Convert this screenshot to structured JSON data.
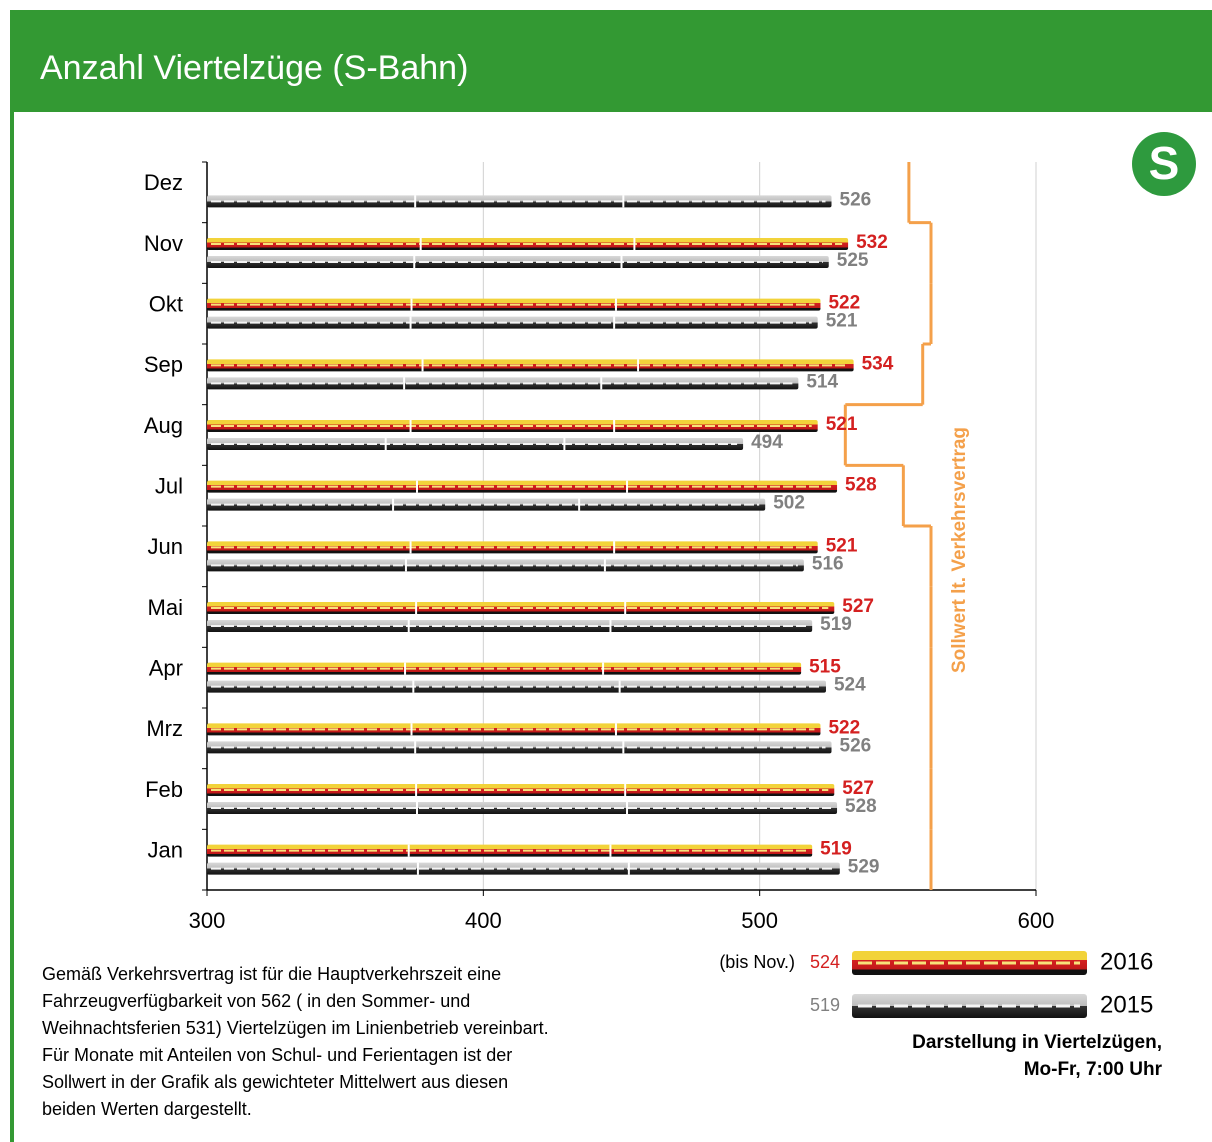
{
  "chart_data": {
    "type": "bar",
    "title": "Anzahl Viertelzüge (S-Bahn)",
    "logo": "S",
    "categories": [
      "Jan",
      "Feb",
      "Mrz",
      "Apr",
      "Mai",
      "Jun",
      "Jul",
      "Aug",
      "Sep",
      "Okt",
      "Nov",
      "Dez"
    ],
    "series": [
      {
        "name": "2016",
        "color": "#d42020",
        "average": 524,
        "average_note": "(bis Nov.)",
        "values": [
          519,
          527,
          522,
          515,
          527,
          521,
          528,
          521,
          534,
          522,
          532,
          null
        ]
      },
      {
        "name": "2015",
        "color": "#808080",
        "average": 519,
        "values": [
          529,
          528,
          526,
          524,
          519,
          516,
          502,
          494,
          514,
          521,
          525,
          526
        ]
      }
    ],
    "target": {
      "name": "Sollwert lt. Verkehrsvertrag",
      "color": "#f4a04a",
      "values": [
        562,
        562,
        562,
        562,
        562,
        562,
        552,
        531,
        559,
        562,
        562,
        554
      ]
    },
    "xlim": [
      300,
      600
    ],
    "xticks": [
      300,
      400,
      500,
      600
    ],
    "grid": true,
    "legend_caption": [
      "Darstellung in Viertelzügen,",
      "Mo-Fr, 7:00 Uhr"
    ],
    "footnote": [
      "Gemäß Verkehrsvertrag ist für die Hauptverkehrszeit eine",
      "Fahrzeugverfügbarkeit von 562 ( in den Sommer- und",
      "Weihnachtsferien 531) Viertelzügen im Linienbetrieb vereinbart.",
      "Für Monate mit Anteilen von Schul- und Ferientagen ist der",
      "Sollwert in der Grafik als gewichteter Mittelwert aus diesen",
      "beiden Werten dargestellt."
    ]
  }
}
